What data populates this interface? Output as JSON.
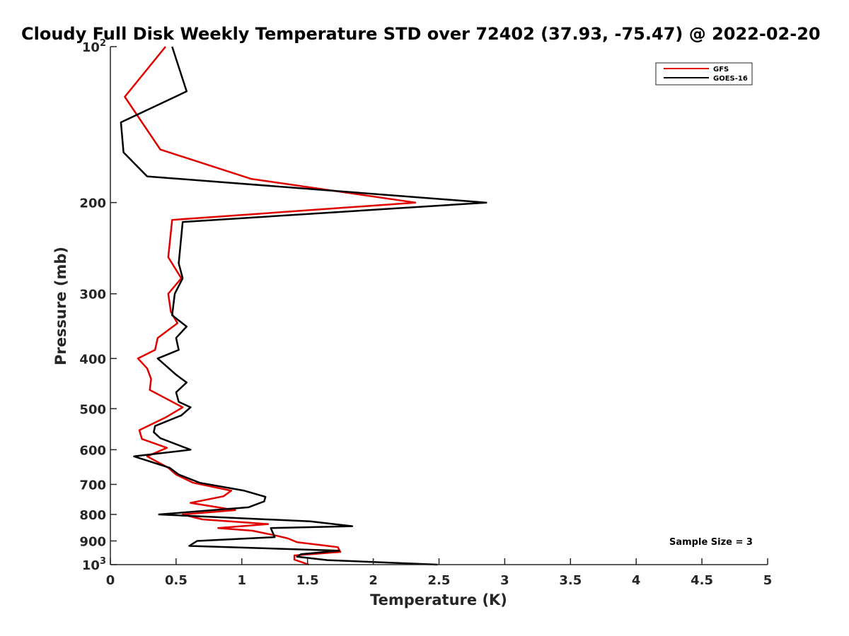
{
  "chart_data": {
    "type": "line",
    "title": "Cloudy Full Disk Weekly Temperature STD over 72402 (37.93, -75.47) @ 2022-02-20",
    "xlabel": "Temperature (K)",
    "ylabel": "Pressure (mb)",
    "xlim": [
      0,
      5
    ],
    "ylim": [
      100,
      1000
    ],
    "y_scale": "log",
    "y_reversed": true,
    "x_ticks": [
      {
        "value": 0,
        "label": "0"
      },
      {
        "value": 0.5,
        "label": "0.5"
      },
      {
        "value": 1,
        "label": "1"
      },
      {
        "value": 1.5,
        "label": "1.5"
      },
      {
        "value": 2,
        "label": "2"
      },
      {
        "value": 2.5,
        "label": "2.5"
      },
      {
        "value": 3,
        "label": "3"
      },
      {
        "value": 3.5,
        "label": "3.5"
      },
      {
        "value": 4,
        "label": "4"
      },
      {
        "value": 4.5,
        "label": "4.5"
      },
      {
        "value": 5,
        "label": "5"
      }
    ],
    "y_ticks": [
      {
        "value": 100,
        "label": "10",
        "sup": "2"
      },
      {
        "value": 200,
        "label": "200",
        "sup": ""
      },
      {
        "value": 300,
        "label": "300",
        "sup": ""
      },
      {
        "value": 400,
        "label": "400",
        "sup": ""
      },
      {
        "value": 500,
        "label": "500",
        "sup": ""
      },
      {
        "value": 600,
        "label": "600",
        "sup": ""
      },
      {
        "value": 700,
        "label": "700",
        "sup": ""
      },
      {
        "value": 800,
        "label": "800",
        "sup": ""
      },
      {
        "value": 900,
        "label": "900",
        "sup": ""
      },
      {
        "value": 1000,
        "label": "10",
        "sup": "3"
      }
    ],
    "grid": false,
    "legend_position": "top-right",
    "series": [
      {
        "name": "GFS",
        "color": "#e00000",
        "points": [
          [
            0.42,
            100
          ],
          [
            0.11,
            125
          ],
          [
            0.38,
            158
          ],
          [
            1.07,
            180
          ],
          [
            2.32,
            200
          ],
          [
            0.47,
            216
          ],
          [
            0.44,
            255
          ],
          [
            0.54,
            280
          ],
          [
            0.44,
            300
          ],
          [
            0.46,
            325
          ],
          [
            0.51,
            342
          ],
          [
            0.36,
            365
          ],
          [
            0.34,
            385
          ],
          [
            0.21,
            400
          ],
          [
            0.28,
            418
          ],
          [
            0.31,
            438
          ],
          [
            0.3,
            460
          ],
          [
            0.55,
            497
          ],
          [
            0.42,
            520
          ],
          [
            0.22,
            550
          ],
          [
            0.24,
            572
          ],
          [
            0.43,
            595
          ],
          [
            0.28,
            618
          ],
          [
            0.44,
            650
          ],
          [
            0.5,
            670
          ],
          [
            0.63,
            695
          ],
          [
            0.92,
            720
          ],
          [
            0.86,
            738
          ],
          [
            0.61,
            760
          ],
          [
            0.95,
            785
          ],
          [
            0.55,
            800
          ],
          [
            0.7,
            818
          ],
          [
            1.2,
            835
          ],
          [
            0.82,
            850
          ],
          [
            1.08,
            860
          ],
          [
            1.27,
            880
          ],
          [
            1.35,
            890
          ],
          [
            1.42,
            905
          ],
          [
            1.73,
            925
          ],
          [
            1.75,
            945
          ],
          [
            1.4,
            960
          ],
          [
            1.4,
            978
          ],
          [
            1.51,
            1000
          ]
        ]
      },
      {
        "name": "GOES-16",
        "color": "#000000",
        "points": [
          [
            0.47,
            100
          ],
          [
            0.58,
            122
          ],
          [
            0.08,
            140
          ],
          [
            0.1,
            160
          ],
          [
            0.28,
            178
          ],
          [
            2.86,
            200
          ],
          [
            0.55,
            218
          ],
          [
            0.52,
            262
          ],
          [
            0.55,
            280
          ],
          [
            0.49,
            300
          ],
          [
            0.47,
            330
          ],
          [
            0.58,
            347
          ],
          [
            0.5,
            365
          ],
          [
            0.52,
            385
          ],
          [
            0.36,
            400
          ],
          [
            0.5,
            430
          ],
          [
            0.58,
            445
          ],
          [
            0.5,
            465
          ],
          [
            0.52,
            485
          ],
          [
            0.61,
            497
          ],
          [
            0.54,
            515
          ],
          [
            0.34,
            540
          ],
          [
            0.33,
            555
          ],
          [
            0.38,
            570
          ],
          [
            0.61,
            600
          ],
          [
            0.18,
            618
          ],
          [
            0.45,
            650
          ],
          [
            0.52,
            670
          ],
          [
            0.68,
            695
          ],
          [
            1.02,
            720
          ],
          [
            1.18,
            740
          ],
          [
            1.17,
            755
          ],
          [
            1.05,
            775
          ],
          [
            0.37,
            800
          ],
          [
            1.52,
            825
          ],
          [
            1.84,
            843
          ],
          [
            1.22,
            850
          ],
          [
            1.25,
            885
          ],
          [
            0.66,
            900
          ],
          [
            0.6,
            920
          ],
          [
            1.74,
            940
          ],
          [
            1.45,
            955
          ],
          [
            1.42,
            965
          ],
          [
            1.65,
            980
          ],
          [
            2.49,
            1000
          ]
        ]
      }
    ],
    "annotations": [
      {
        "text": "Sample Size = 3",
        "position": "bottom-right"
      }
    ]
  }
}
